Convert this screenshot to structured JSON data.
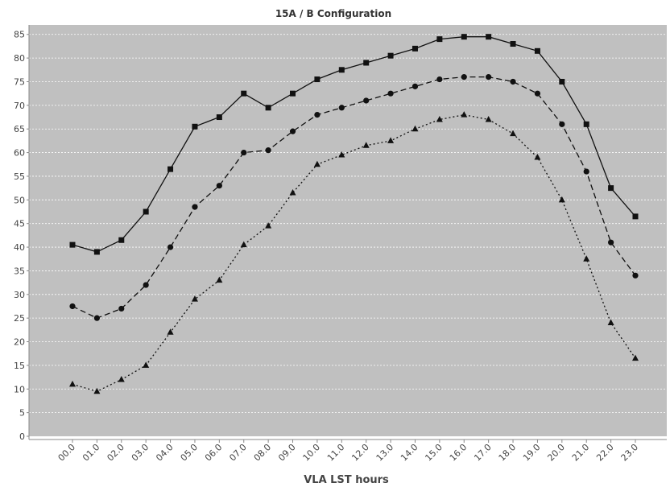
{
  "chart_data": {
    "type": "line",
    "title": "15A / B Configuration",
    "xlabel": "VLA LST hours",
    "ylabel": "",
    "ylim": [
      0,
      87
    ],
    "yticks": [
      0,
      5,
      10,
      15,
      20,
      25,
      30,
      35,
      40,
      45,
      50,
      55,
      60,
      65,
      70,
      75,
      80,
      85
    ],
    "grid": true,
    "legend": "none",
    "background_color": "#c0c0c0",
    "grid_color": "#ffffff",
    "line_color": "#111111",
    "categories": [
      "00.0",
      "01.0",
      "02.0",
      "03.0",
      "04.0",
      "05.0",
      "06.0",
      "07.0",
      "08.0",
      "09.0",
      "10.0",
      "11.0",
      "12.0",
      "13.0",
      "14.0",
      "15.0",
      "16.0",
      "17.0",
      "18.0",
      "19.0",
      "20.0",
      "21.0",
      "22.0",
      "23.0"
    ],
    "series": [
      {
        "style": "solid",
        "marker": "square",
        "values": [
          40.5,
          39,
          41.5,
          47.5,
          56.5,
          65.5,
          67.5,
          72.5,
          69.5,
          72.5,
          75.5,
          77.5,
          79,
          80.5,
          82,
          84,
          84.5,
          84.5,
          83,
          81.5,
          75,
          66,
          52.5,
          46.5
        ]
      },
      {
        "style": "dashed",
        "marker": "circle",
        "values": [
          27.5,
          25,
          27,
          32,
          40,
          48.5,
          53,
          60,
          60.5,
          64.5,
          68,
          69.5,
          71,
          72.5,
          74,
          75.5,
          76,
          76,
          75,
          72.5,
          66,
          56,
          41,
          34
        ]
      },
      {
        "style": "dotted",
        "marker": "triangle",
        "values": [
          11,
          9.5,
          12,
          15,
          22,
          29,
          33,
          40.5,
          44.5,
          51.5,
          57.5,
          59.5,
          61.5,
          62.5,
          65,
          67,
          68,
          67,
          64,
          59,
          50,
          37.5,
          24,
          16.5
        ]
      }
    ]
  }
}
